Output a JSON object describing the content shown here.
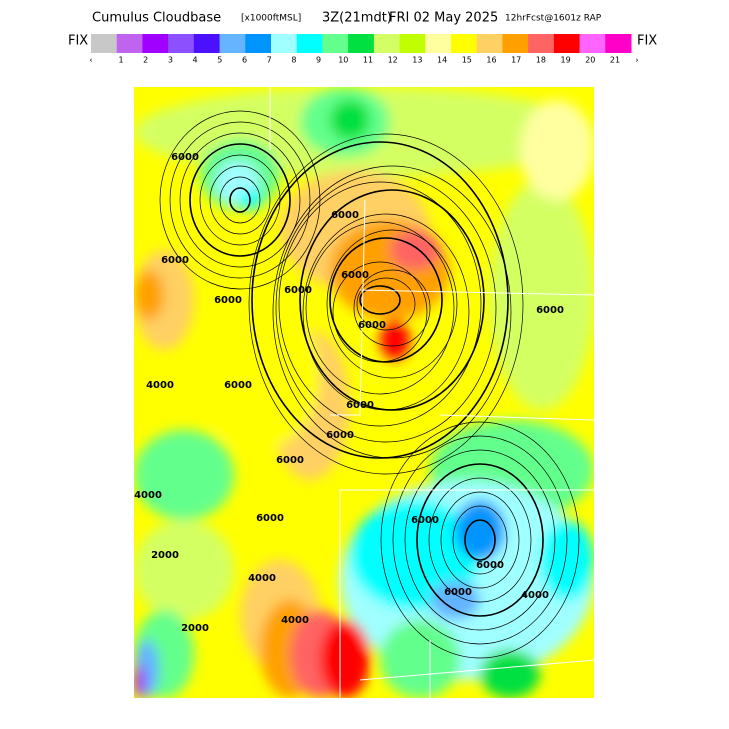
{
  "header": {
    "title_parts": [
      "Cumulus Cloudbase",
      "[x1000ftMSL]",
      "3Z(21mdt)",
      "FRI 02 May 2025",
      "12hrFcst@1601z RAP"
    ]
  },
  "colorbar": {
    "left_label": "FIX",
    "right_label": "FIX",
    "colors": [
      "#c8c8c8",
      "#c064f0",
      "#a000ff",
      "#8c50ff",
      "#4a10ff",
      "#64b4ff",
      "#0094ff",
      "#a0ffff",
      "#00ffff",
      "#64ff8c",
      "#00e040",
      "#d4ff64",
      "#c0ff00",
      "#ffffa0",
      "#ffff00",
      "#ffd064",
      "#ffa000",
      "#ff6464",
      "#ff0000",
      "#ff64ff",
      "#ff00c8"
    ],
    "tick_labels": [
      "‹",
      "1",
      "2",
      "3",
      "4",
      "5",
      "6",
      "7",
      "8",
      "9",
      "10",
      "11",
      "12",
      "13",
      "14",
      "15",
      "16",
      "17",
      "18",
      "19",
      "20",
      "21",
      "›"
    ]
  },
  "map": {
    "contour_labels": [
      "6000",
      "6000",
      "6000",
      "6000",
      "6000",
      "6000",
      "6000",
      "6000",
      "4000",
      "6000",
      "6000",
      "6000",
      "6000",
      "4000",
      "2000",
      "4000",
      "2000",
      "6000",
      "6000",
      "6000",
      "4000",
      "4000",
      "6000"
    ]
  }
}
